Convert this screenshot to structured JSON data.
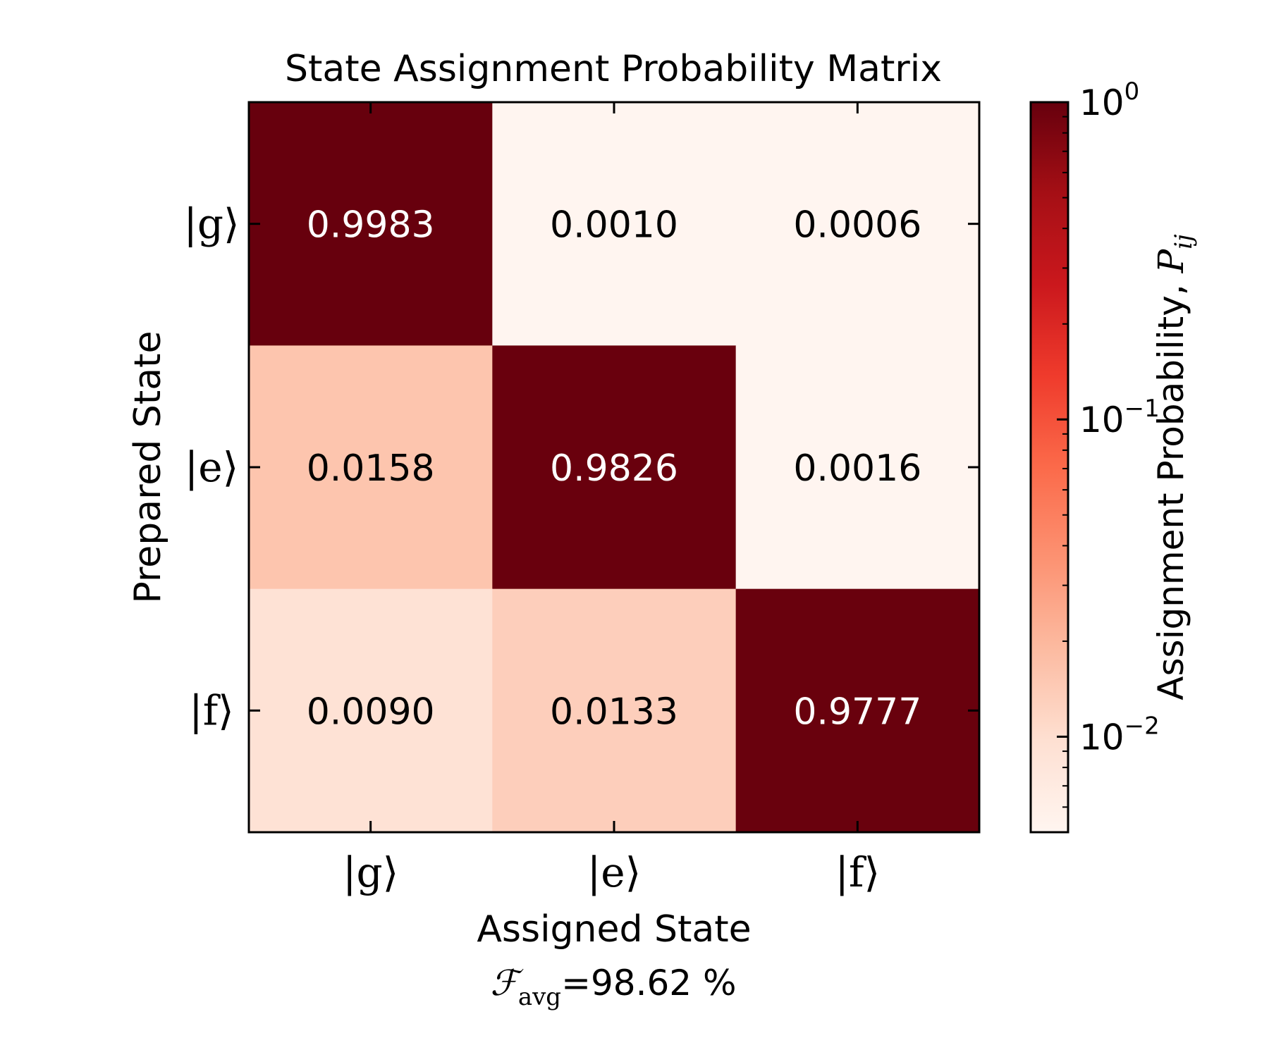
{
  "chart_data": {
    "type": "heatmap",
    "title": "State Assignment Probability Matrix",
    "xlabel": "Assigned State",
    "ylabel": "Prepared State",
    "x_categories": [
      "|g⟩",
      "|e⟩",
      "|f⟩"
    ],
    "y_categories": [
      "|g⟩",
      "|e⟩",
      "|f⟩"
    ],
    "values": [
      [
        0.9983,
        0.001,
        0.0006
      ],
      [
        0.0158,
        0.9826,
        0.0016
      ],
      [
        0.009,
        0.0133,
        0.9777
      ]
    ],
    "value_labels": [
      [
        "0.9983",
        "0.0010",
        "0.0006"
      ],
      [
        "0.0158",
        "0.9826",
        "0.0016"
      ],
      [
        "0.0090",
        "0.0133",
        "0.9777"
      ]
    ],
    "colorbar": {
      "label_text": "Assignment Probability, ",
      "label_symbol": "P",
      "label_subscript": "ij",
      "scale": "log",
      "range": [
        0.005,
        1.0
      ],
      "ticks": [
        {
          "base": "10",
          "exp": "0",
          "value": 1.0
        },
        {
          "base": "10",
          "exp": "−1",
          "value": 0.1
        },
        {
          "base": "10",
          "exp": "−2",
          "value": 0.01
        }
      ],
      "colors": [
        "#fff5f0",
        "#fee0d2",
        "#fcbba1",
        "#fc9272",
        "#fb6a4a",
        "#ef3b2c",
        "#cb181d",
        "#a50f15",
        "#67000d"
      ]
    },
    "annotation": {
      "symbol": "ℱ",
      "subscript": "avg",
      "text": "=98.62 %"
    }
  }
}
